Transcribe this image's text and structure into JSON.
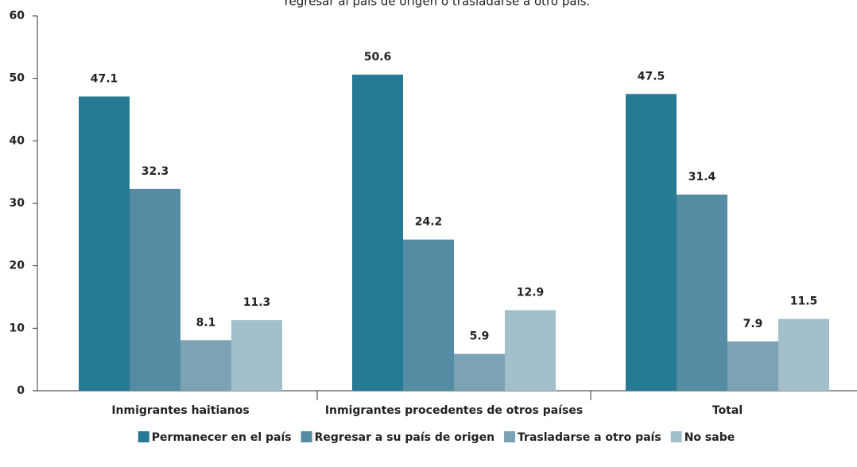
{
  "chart_data": {
    "type": "bar",
    "title": "regresar al país de origen o trasladarse a otro país.",
    "categories": [
      "Inmigrantes haitianos",
      "Inmigrantes procedentes de otros países",
      "Total"
    ],
    "series": [
      {
        "name": "Permanecer en el país",
        "color": "#277a93",
        "values": [
          47.1,
          50.6,
          47.5
        ]
      },
      {
        "name": "Regresar a su país de origen",
        "color": "#548ca3",
        "values": [
          32.3,
          24.2,
          31.4
        ]
      },
      {
        "name": "Trasladarse a otro país",
        "color": "#7ba3b5",
        "values": [
          8.1,
          5.9,
          7.9
        ]
      },
      {
        "name": "No sabe",
        "color": "#a3bfcc",
        "values": [
          11.3,
          12.9,
          11.5
        ]
      }
    ],
    "ylim": [
      0,
      60
    ],
    "yticks": [
      0,
      10,
      20,
      30,
      40,
      50,
      60
    ],
    "grid": false,
    "legend": "bottom"
  }
}
